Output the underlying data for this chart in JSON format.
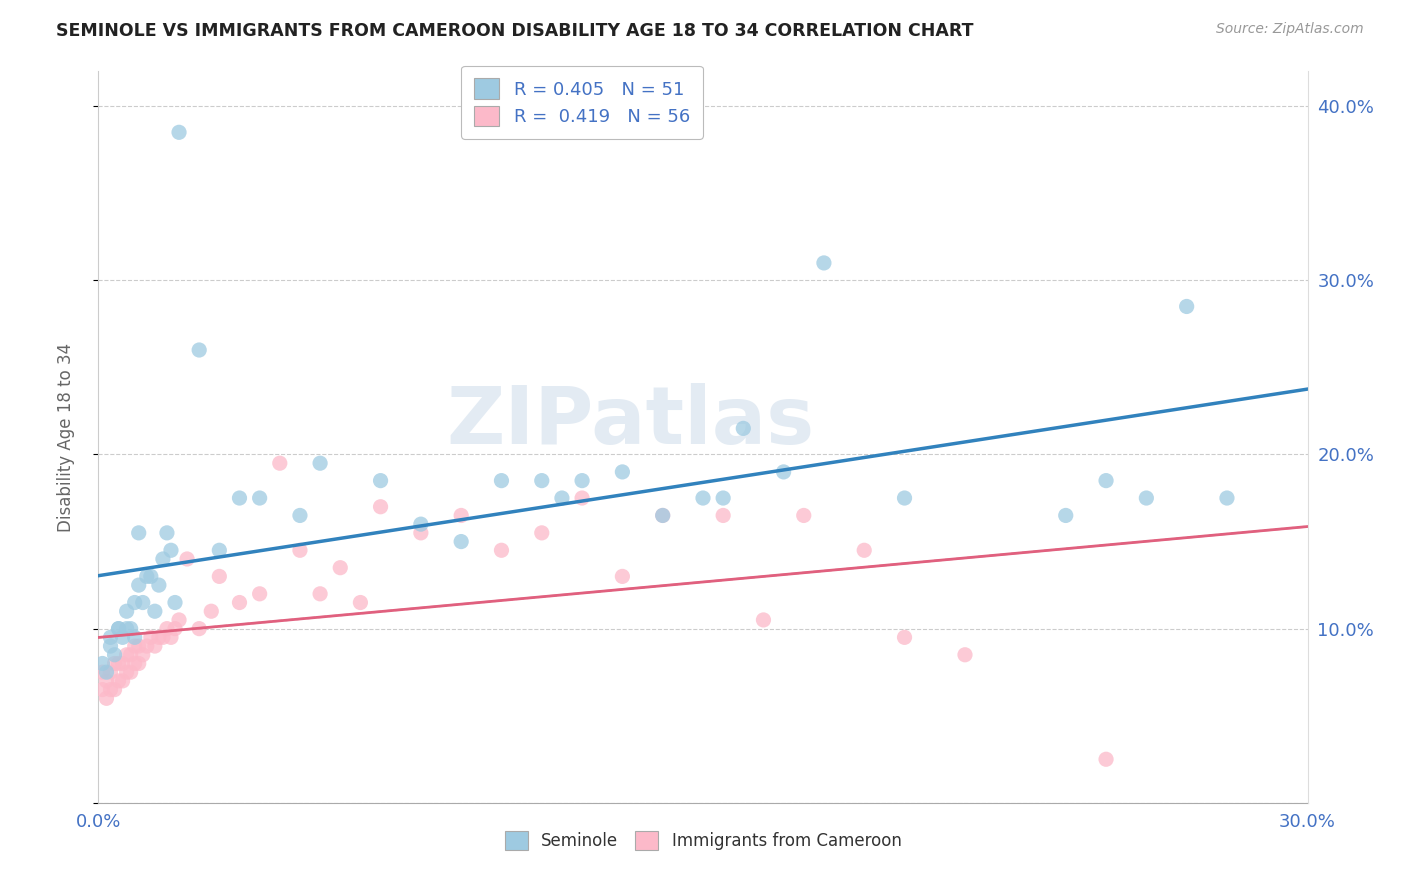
{
  "title": "SEMINOLE VS IMMIGRANTS FROM CAMEROON DISABILITY AGE 18 TO 34 CORRELATION CHART",
  "source": "Source: ZipAtlas.com",
  "ylabel": "Disability Age 18 to 34",
  "xlim": [
    0.0,
    0.3
  ],
  "ylim": [
    0.0,
    0.42
  ],
  "xtick_positions": [
    0.0,
    0.05,
    0.1,
    0.15,
    0.2,
    0.25,
    0.3
  ],
  "xtick_labels": [
    "0.0%",
    "",
    "",
    "",
    "",
    "",
    "30.0%"
  ],
  "ytick_positions": [
    0.0,
    0.1,
    0.2,
    0.3,
    0.4
  ],
  "ytick_labels": [
    "",
    "10.0%",
    "20.0%",
    "30.0%",
    "40.0%"
  ],
  "seminole_R": "0.405",
  "seminole_N": "51",
  "cameroon_R": "0.419",
  "cameroon_N": "56",
  "blue_color": "#9ecae1",
  "pink_color": "#fcb9c9",
  "blue_line_color": "#3182bd",
  "pink_line_color": "#e0607e",
  "watermark": "ZIPatlas",
  "seminole_x": [
    0.001,
    0.002,
    0.003,
    0.003,
    0.004,
    0.005,
    0.005,
    0.006,
    0.007,
    0.007,
    0.008,
    0.009,
    0.009,
    0.01,
    0.01,
    0.011,
    0.012,
    0.013,
    0.014,
    0.015,
    0.016,
    0.017,
    0.018,
    0.019,
    0.02,
    0.025,
    0.03,
    0.035,
    0.04,
    0.05,
    0.055,
    0.07,
    0.08,
    0.09,
    0.1,
    0.11,
    0.115,
    0.12,
    0.13,
    0.14,
    0.15,
    0.155,
    0.16,
    0.17,
    0.18,
    0.2,
    0.24,
    0.25,
    0.26,
    0.27,
    0.28
  ],
  "seminole_y": [
    0.08,
    0.075,
    0.09,
    0.095,
    0.085,
    0.1,
    0.1,
    0.095,
    0.1,
    0.11,
    0.1,
    0.095,
    0.115,
    0.125,
    0.155,
    0.115,
    0.13,
    0.13,
    0.11,
    0.125,
    0.14,
    0.155,
    0.145,
    0.115,
    0.385,
    0.26,
    0.145,
    0.175,
    0.175,
    0.165,
    0.195,
    0.185,
    0.16,
    0.15,
    0.185,
    0.185,
    0.175,
    0.185,
    0.19,
    0.165,
    0.175,
    0.175,
    0.215,
    0.19,
    0.31,
    0.175,
    0.165,
    0.185,
    0.175,
    0.285,
    0.175
  ],
  "cameroon_x": [
    0.001,
    0.001,
    0.002,
    0.002,
    0.003,
    0.003,
    0.004,
    0.004,
    0.005,
    0.005,
    0.006,
    0.006,
    0.007,
    0.007,
    0.008,
    0.008,
    0.009,
    0.009,
    0.01,
    0.01,
    0.011,
    0.012,
    0.013,
    0.014,
    0.015,
    0.016,
    0.017,
    0.018,
    0.019,
    0.02,
    0.022,
    0.025,
    0.028,
    0.03,
    0.035,
    0.04,
    0.045,
    0.05,
    0.055,
    0.06,
    0.065,
    0.07,
    0.08,
    0.09,
    0.1,
    0.11,
    0.12,
    0.13,
    0.14,
    0.155,
    0.165,
    0.175,
    0.19,
    0.2,
    0.215,
    0.25
  ],
  "cameroon_y": [
    0.065,
    0.075,
    0.06,
    0.07,
    0.065,
    0.075,
    0.065,
    0.08,
    0.07,
    0.08,
    0.07,
    0.08,
    0.075,
    0.085,
    0.075,
    0.085,
    0.08,
    0.09,
    0.08,
    0.09,
    0.085,
    0.09,
    0.095,
    0.09,
    0.095,
    0.095,
    0.1,
    0.095,
    0.1,
    0.105,
    0.14,
    0.1,
    0.11,
    0.13,
    0.115,
    0.12,
    0.195,
    0.145,
    0.12,
    0.135,
    0.115,
    0.17,
    0.155,
    0.165,
    0.145,
    0.155,
    0.175,
    0.13,
    0.165,
    0.165,
    0.105,
    0.165,
    0.145,
    0.095,
    0.085,
    0.025
  ]
}
